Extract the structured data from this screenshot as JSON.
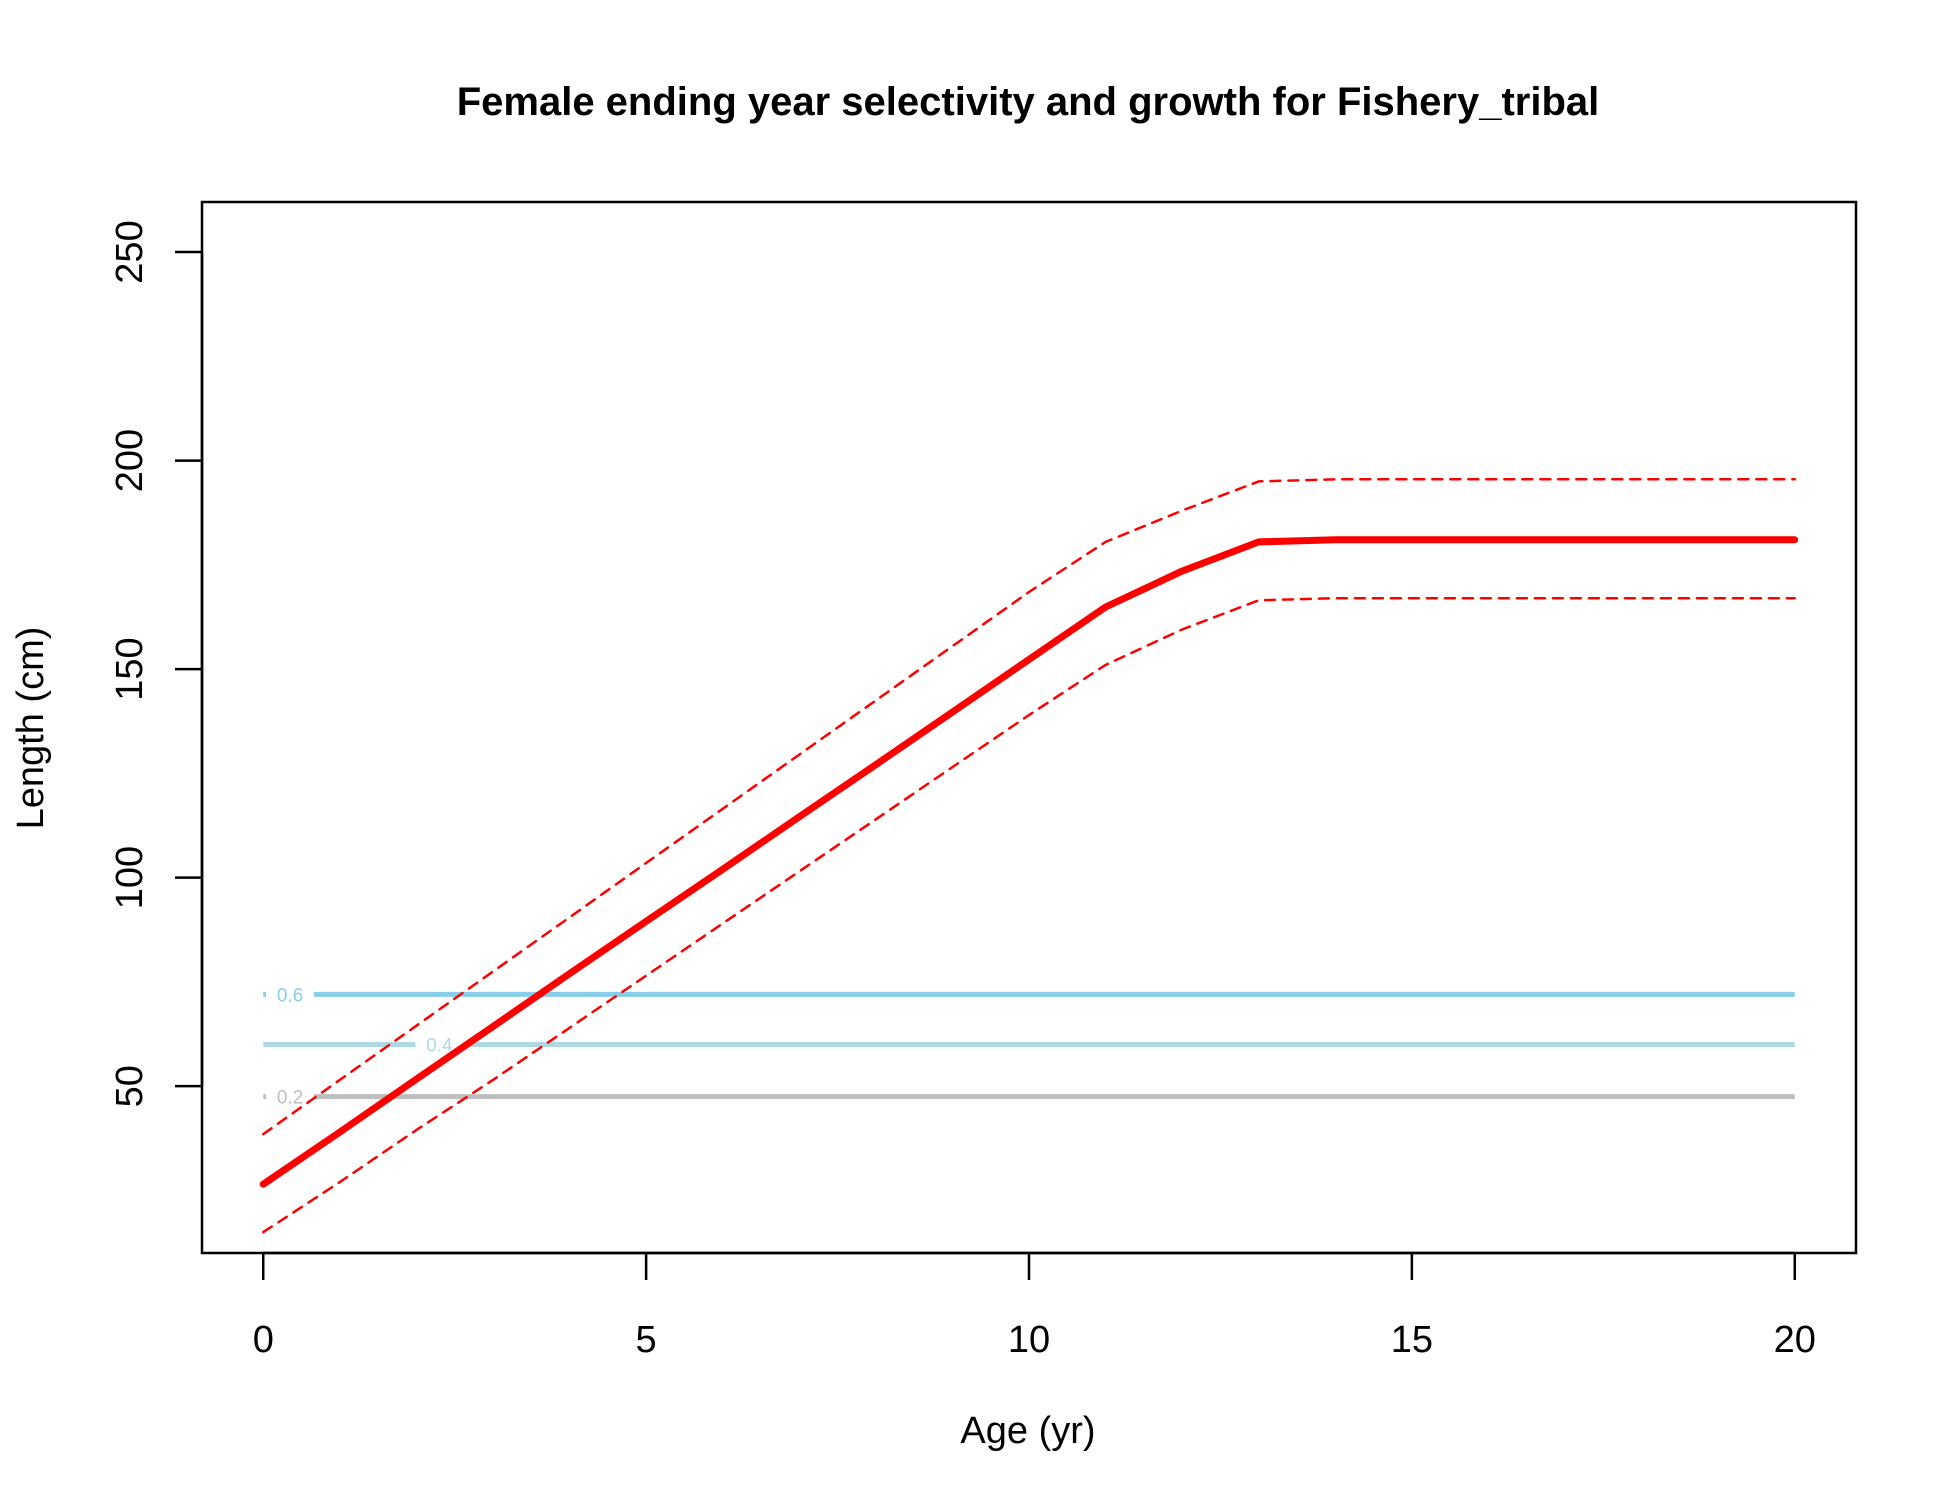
{
  "chart_data": {
    "type": "line",
    "title": "Female ending year selectivity and growth for Fishery_tribal",
    "xlabel": "Age (yr)",
    "ylabel": "Length (cm)",
    "xlim": [
      -0.8,
      20.8
    ],
    "ylim": [
      10,
      262
    ],
    "xticks": [
      0,
      5,
      10,
      15,
      20
    ],
    "yticks": [
      50,
      100,
      150,
      200,
      250
    ],
    "grid": false,
    "colors": {
      "growth": "#ff0000",
      "contour_0_6": "#87ceeb",
      "contour_0_4": "#add8e6",
      "contour_0_2": "#bebebe"
    },
    "series": [
      {
        "key": "mean",
        "x": [
          0,
          1,
          2,
          3,
          4,
          5,
          6,
          7,
          8,
          9,
          10,
          11,
          12,
          13,
          14,
          15,
          16,
          17,
          18,
          19,
          20
        ],
        "y": [
          26.5,
          39.0,
          51.7,
          64.3,
          77.0,
          89.5,
          102.0,
          114.6,
          127.1,
          139.7,
          152.3,
          164.9,
          173.5,
          180.5,
          181.0,
          181.0,
          181.0,
          181.0,
          181.0,
          181.0,
          181.0
        ]
      },
      {
        "key": "upper",
        "x": [
          0,
          1,
          2,
          3,
          4,
          5,
          6,
          7,
          8,
          9,
          10,
          11,
          12,
          13,
          14,
          15,
          16,
          17,
          18,
          19,
          20
        ],
        "y": [
          38.5,
          51.5,
          64.5,
          77.5,
          90.5,
          103.5,
          116.5,
          129.5,
          142.5,
          155.5,
          168.5,
          180.5,
          188.0,
          195.0,
          195.5,
          195.5,
          195.5,
          195.5,
          195.5,
          195.5,
          195.5
        ]
      },
      {
        "key": "lower",
        "x": [
          0,
          1,
          2,
          3,
          4,
          5,
          6,
          7,
          8,
          9,
          10,
          11,
          12,
          13,
          14,
          15,
          16,
          17,
          18,
          19,
          20
        ],
        "y": [
          15.0,
          27.0,
          39.5,
          51.5,
          64.0,
          76.5,
          89.0,
          101.5,
          114.0,
          126.5,
          139.0,
          151.0,
          159.5,
          166.5,
          167.0,
          167.0,
          167.0,
          167.0,
          167.0,
          167.0,
          167.0
        ]
      }
    ],
    "contours": [
      {
        "level": "0.6",
        "y": 72.0,
        "label": "0.6",
        "label_x": 0.35,
        "x": [
          0,
          20
        ]
      },
      {
        "level": "0.4",
        "y": 60.0,
        "label": "0.4",
        "label_x": 2.3,
        "x": [
          0,
          20
        ]
      },
      {
        "level": "0.2",
        "y": 47.5,
        "label": "0.2",
        "label_x": 0.35,
        "x": [
          0,
          20
        ]
      }
    ]
  }
}
